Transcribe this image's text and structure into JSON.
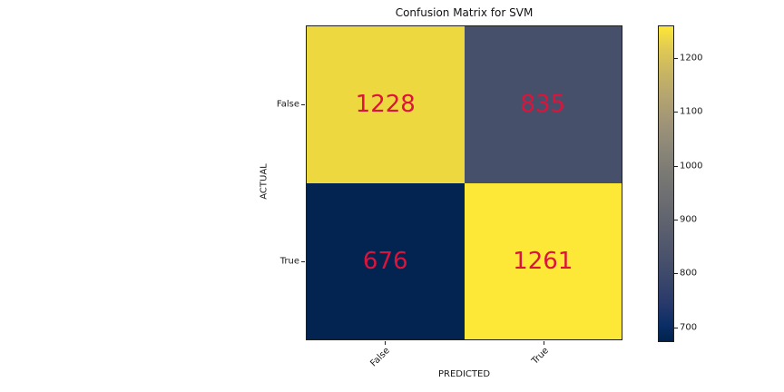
{
  "chart_data": {
    "type": "heatmap",
    "title": "Confusion Matrix for SVM",
    "xlabel": "PREDICTED",
    "ylabel": "ACTUAL",
    "x_categories": [
      "False",
      "True"
    ],
    "y_categories": [
      "False",
      "True"
    ],
    "values": [
      [
        1228,
        835
      ],
      [
        676,
        1261
      ]
    ],
    "cell_colors": [
      [
        "#edd83f",
        "#47506a"
      ],
      [
        "#032450",
        "#fde737"
      ]
    ],
    "annotation_color": "#dc143c",
    "colormap": "cividis",
    "grid": false,
    "legend_position": "right",
    "colorbar": {
      "min": 676,
      "max": 1261,
      "ticks": [
        700,
        800,
        900,
        1000,
        1100,
        1200
      ]
    }
  }
}
